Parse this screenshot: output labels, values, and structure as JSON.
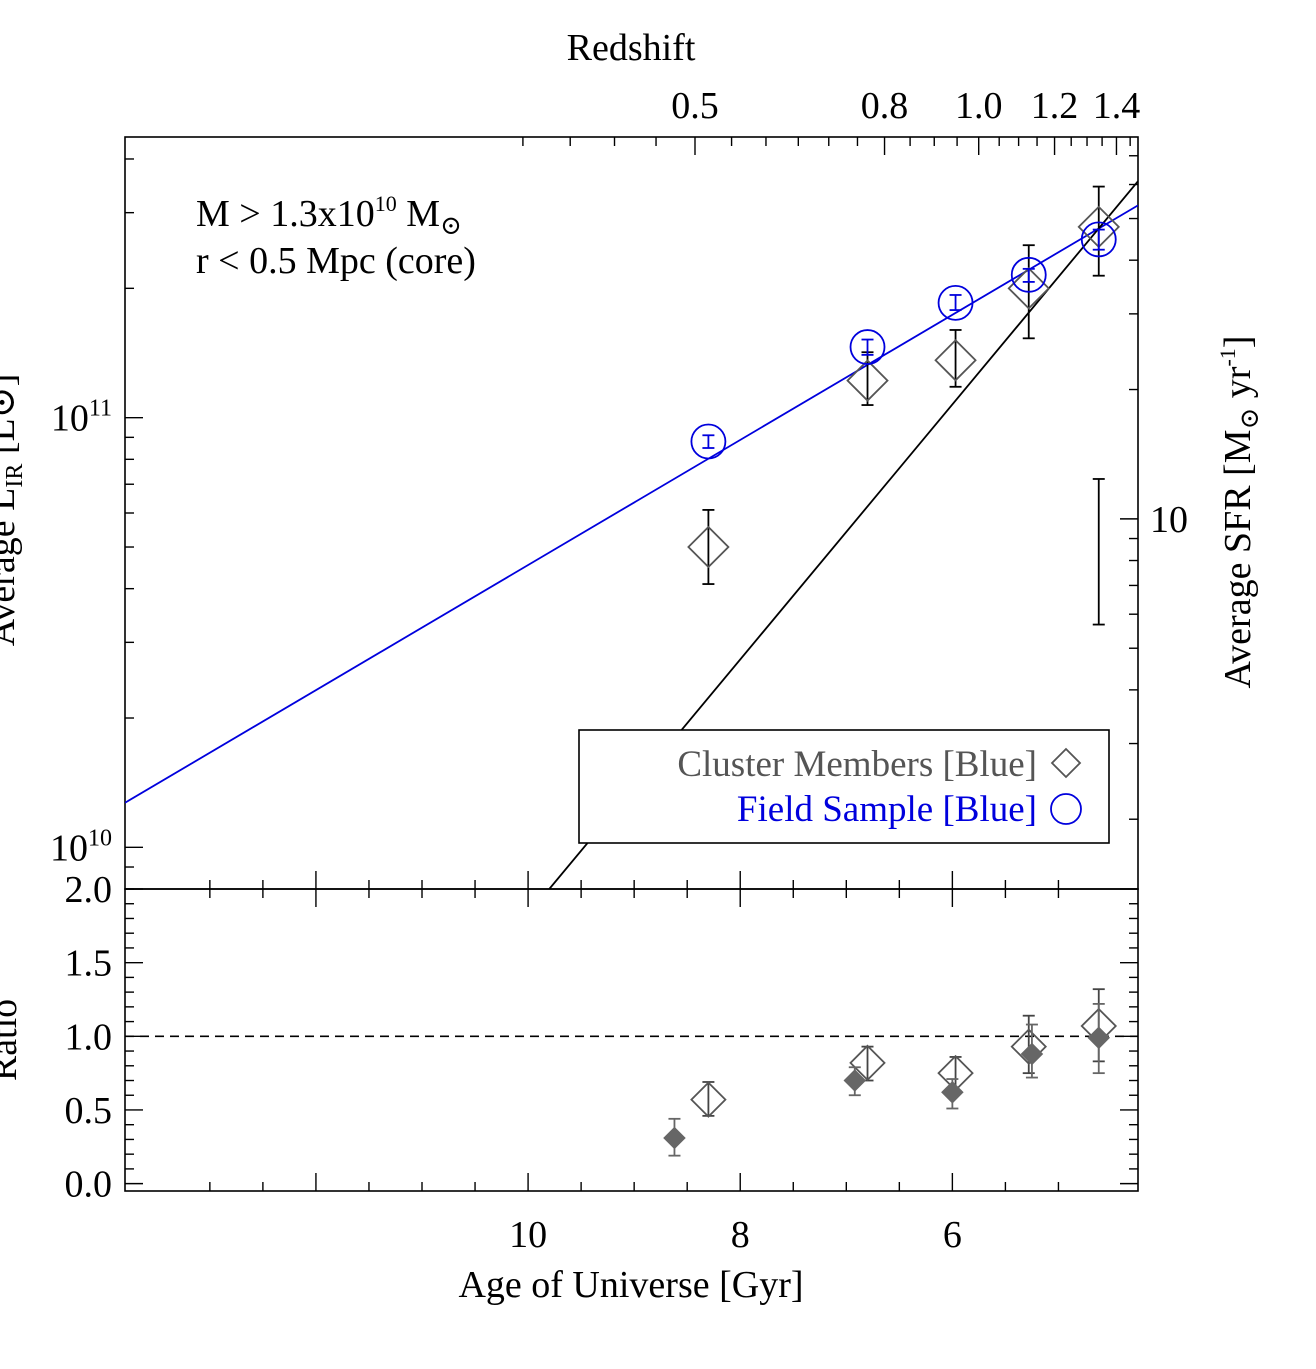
{
  "chart_data": {
    "type": "scatter",
    "top_axis": {
      "title": "Redshift",
      "ticks": [
        0.5,
        0.8,
        1.0,
        1.2,
        1.4
      ],
      "tick_labels": [
        "0.5",
        "0.8",
        "1.0",
        "1.2",
        "1.4"
      ]
    },
    "x_axis": {
      "title": "Age of Universe [Gyr]",
      "range": [
        13.8,
        4.25
      ],
      "ticks": [
        10,
        8,
        6
      ],
      "tick_labels": [
        "10",
        "8",
        "6"
      ]
    },
    "main_panel": {
      "y_axis": {
        "scale": "log",
        "range": [
          8000000000.0,
          450000000000.0
        ],
        "ticks": [
          10000000000.0,
          100000000000.0
        ],
        "tick_labels": [
          {
            "base": "10",
            "exp": "10"
          },
          {
            "base": "10",
            "exp": "11"
          }
        ],
        "title_visible": "Average L",
        "title_sub": "IR",
        "title_tail": " [L⊙]"
      },
      "right_axis": {
        "title_main": "Average SFR [M",
        "title_sun": "⊙",
        "title_mid": " yr",
        "title_exp": "-1",
        "title_end": "]",
        "ticks": [
          10
        ],
        "tick_labels": [
          "10"
        ]
      },
      "annotation": {
        "line1_pre": "M > 1.3x10",
        "line1_exp": "10",
        "line1_post": " M",
        "line1_sun": "⊙",
        "line2": "r < 0.5 Mpc (core)"
      },
      "series": [
        {
          "name": "Cluster Members [Blue]",
          "marker": "diamond",
          "color": "#555555",
          "points": [
            {
              "x": 8.3,
              "y": 50000000000.0,
              "err_lo": 41000000000.0,
              "err_hi": 61000000000.0
            },
            {
              "x": 6.8,
              "y": 122000000000.0,
              "err_lo": 107000000000.0,
              "err_hi": 142000000000.0
            },
            {
              "x": 5.97,
              "y": 136000000000.0,
              "err_lo": 118000000000.0,
              "err_hi": 160000000000.0
            },
            {
              "x": 5.28,
              "y": 200000000000.0,
              "err_lo": 153000000000.0,
              "err_hi": 252000000000.0
            },
            {
              "x": 4.62,
              "y": 278000000000.0,
              "err_lo": 214000000000.0,
              "err_hi": 345000000000.0
            }
          ]
        },
        {
          "name": "Field Sample [Blue]",
          "marker": "circle",
          "color": "#0000dd",
          "points": [
            {
              "x": 8.3,
              "y": 88000000000.0,
              "err_lo": 85000000000.0,
              "err_hi": 91000000000.0
            },
            {
              "x": 6.8,
              "y": 146000000000.0,
              "err_lo": 140000000000.0,
              "err_hi": 152000000000.0
            },
            {
              "x": 5.97,
              "y": 185000000000.0,
              "err_lo": 178000000000.0,
              "err_hi": 193000000000.0
            },
            {
              "x": 5.28,
              "y": 215000000000.0,
              "err_lo": 207000000000.0,
              "err_hi": 222000000000.0
            },
            {
              "x": 4.62,
              "y": 260000000000.0,
              "err_lo": 246000000000.0,
              "err_hi": 274000000000.0
            }
          ]
        }
      ],
      "fit_lines": [
        {
          "name": "field-fit",
          "color": "#0000dd",
          "points": [
            [
              13.8,
              12700000000.0
            ],
            [
              4.25,
              312000000000.0
            ]
          ]
        },
        {
          "name": "cluster-fit",
          "color": "#000000",
          "points": [
            [
              9.8,
              8000000000.0
            ],
            [
              4.25,
              355000000000.0
            ]
          ]
        }
      ],
      "typical_error_bar": {
        "x": 4.62,
        "y_lo": 33000000000.0,
        "y_hi": 72000000000.0
      },
      "legend": {
        "position": "bottom-right",
        "entries": [
          {
            "label": "Cluster Members [Blue]",
            "marker": "diamond",
            "color": "#555555"
          },
          {
            "label": "Field Sample [Blue]",
            "marker": "circle",
            "color": "#0000dd"
          }
        ]
      }
    },
    "ratio_panel": {
      "y_axis": {
        "title": "Ratio",
        "range": [
          -0.05,
          2.0
        ],
        "ticks": [
          0.0,
          0.5,
          1.0,
          1.5,
          2.0
        ],
        "tick_labels": [
          "0.0",
          "0.5",
          "1.0",
          "1.5",
          "2.0"
        ]
      },
      "reference_line": 1.0,
      "series": [
        {
          "name": "ratio-open",
          "marker": "open-diamond",
          "color": "#555555",
          "points": [
            {
              "x": 8.3,
              "y": 0.57,
              "err_lo": 0.46,
              "err_hi": 0.69
            },
            {
              "x": 6.8,
              "y": 0.82,
              "err_lo": 0.7,
              "err_hi": 0.93
            },
            {
              "x": 5.97,
              "y": 0.75,
              "err_lo": 0.63,
              "err_hi": 0.86
            },
            {
              "x": 5.28,
              "y": 0.93,
              "err_lo": 0.75,
              "err_hi": 1.14
            },
            {
              "x": 4.62,
              "y": 1.07,
              "err_lo": 0.83,
              "err_hi": 1.32
            }
          ]
        },
        {
          "name": "ratio-filled",
          "marker": "filled-diamond",
          "color": "#666666",
          "points": [
            {
              "x": 8.62,
              "y": 0.31,
              "err_lo": 0.19,
              "err_hi": 0.44
            },
            {
              "x": 6.92,
              "y": 0.7,
              "err_lo": 0.6,
              "err_hi": 0.79
            },
            {
              "x": 6.0,
              "y": 0.62,
              "err_lo": 0.51,
              "err_hi": 0.71
            },
            {
              "x": 5.25,
              "y": 0.88,
              "err_lo": 0.72,
              "err_hi": 1.08
            },
            {
              "x": 4.62,
              "y": 0.99,
              "err_lo": 0.75,
              "err_hi": 1.22
            }
          ]
        }
      ]
    }
  }
}
